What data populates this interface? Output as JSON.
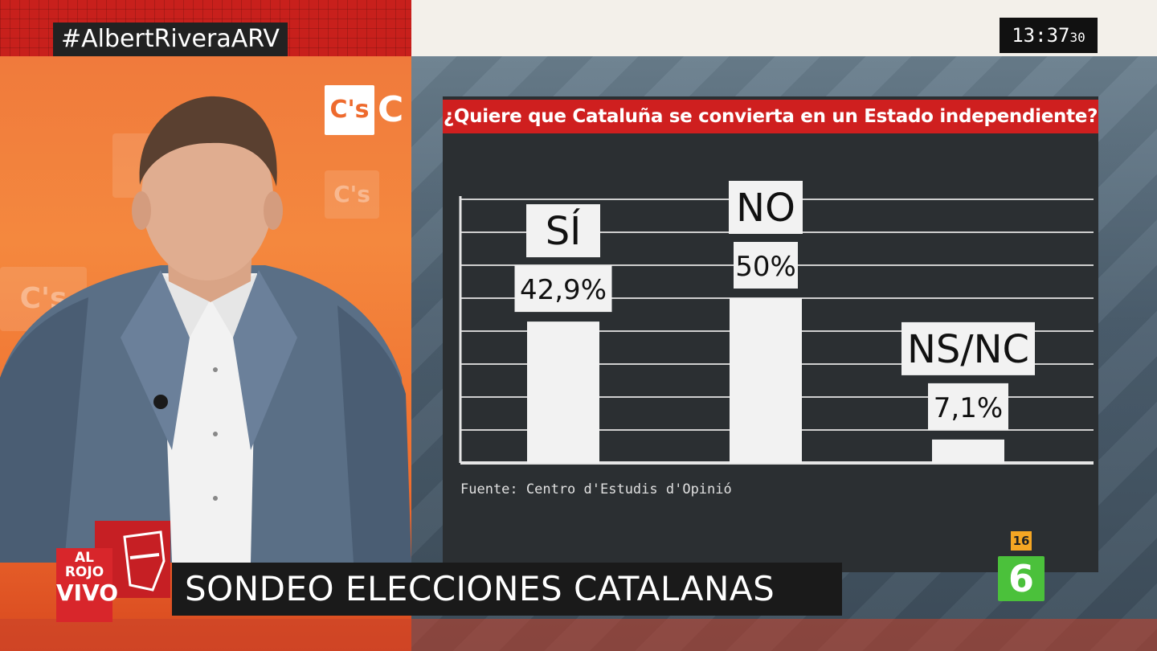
{
  "overlay": {
    "hashtag": "#AlbertRiveraARV",
    "clock_hm": "13:37",
    "clock_s": "30",
    "lower_third": "SONDEO ELECCIONES CATALANAS",
    "show_logo_top": "AL ROJO",
    "show_logo_bottom": "VIVO",
    "age_rating": "16",
    "channel_logo": "6"
  },
  "background": {
    "party_logo": "C's"
  },
  "colors": {
    "title_bg": "#cf1f1f",
    "panel_bg": "#2b2f32",
    "bars": "#f2f2f2",
    "channel": "#4bc13b"
  },
  "chart_data": {
    "type": "bar",
    "title": "¿Quiere que Cataluña se convierta en un Estado independiente?",
    "categories": [
      "SÍ",
      "NO",
      "NS/NC"
    ],
    "values": [
      42.9,
      50,
      7.1
    ],
    "value_labels": [
      "42,9%",
      "50%",
      "7,1%"
    ],
    "ylim": [
      0,
      80
    ],
    "grid": true,
    "source": "Fuente: Centro d'Estudis d'Opinió"
  }
}
